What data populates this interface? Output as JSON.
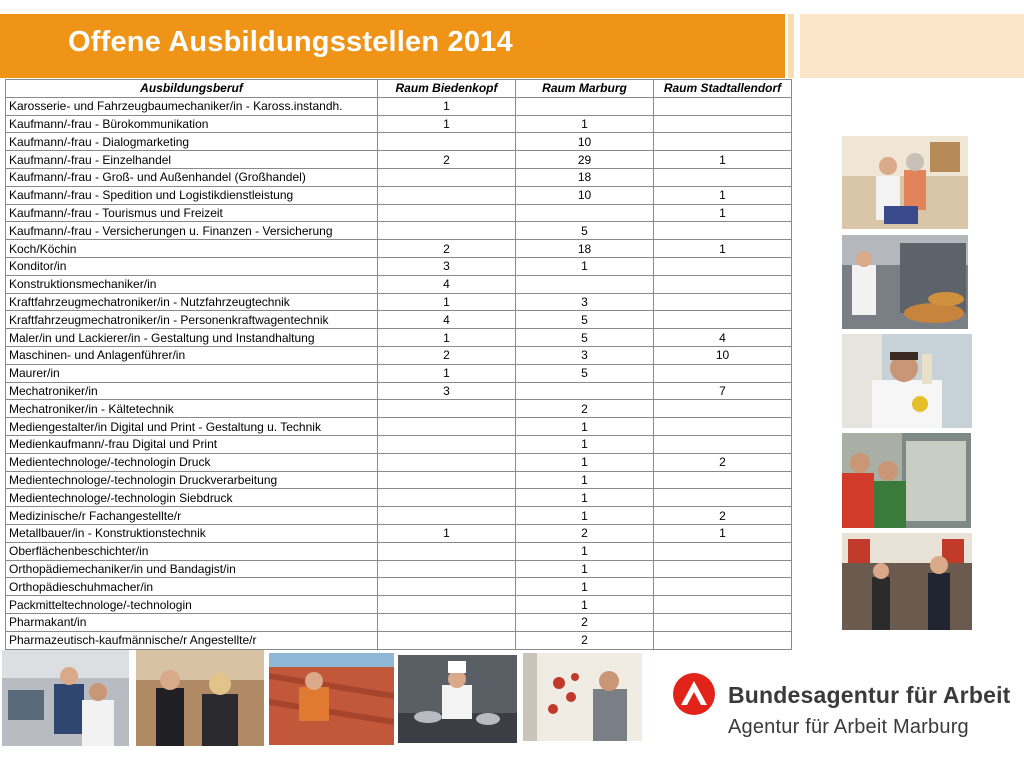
{
  "title": "Offene Ausbildungsstellen 2014",
  "colors": {
    "accent": "#ef9417",
    "logo_red": "#e2231a"
  },
  "table": {
    "headers": [
      "Ausbildungsberuf",
      "Raum Biedenkopf",
      "Raum Marburg",
      "Raum Stadtallendorf"
    ],
    "rows": [
      [
        "Karosserie- und Fahrzeugbaumechaniker/in - Kaross.instandh.",
        "1",
        "",
        ""
      ],
      [
        "Kaufmann/-frau - Bürokommunikation",
        "1",
        "1",
        ""
      ],
      [
        "Kaufmann/-frau - Dialogmarketing",
        "",
        "10",
        ""
      ],
      [
        "Kaufmann/-frau - Einzelhandel",
        "2",
        "29",
        "1"
      ],
      [
        "Kaufmann/-frau - Groß- und Außenhandel (Großhandel)",
        "",
        "18",
        ""
      ],
      [
        "Kaufmann/-frau - Spedition und Logistikdienstleistung",
        "",
        "10",
        "1"
      ],
      [
        "Kaufmann/-frau - Tourismus und Freizeit",
        "",
        "",
        "1"
      ],
      [
        "Kaufmann/-frau - Versicherungen u. Finanzen - Versicherung",
        "",
        "5",
        ""
      ],
      [
        "Koch/Köchin",
        "2",
        "18",
        "1"
      ],
      [
        "Konditor/in",
        "3",
        "1",
        ""
      ],
      [
        "Konstruktionsmechaniker/in",
        "4",
        "",
        ""
      ],
      [
        "Kraftfahrzeugmechatroniker/in - Nutzfahrzeugtechnik",
        "1",
        "3",
        ""
      ],
      [
        "Kraftfahrzeugmechatroniker/in - Personenkraftwagentechnik",
        "4",
        "5",
        ""
      ],
      [
        "Maler/in und Lackierer/in - Gestaltung und Instandhaltung",
        "1",
        "5",
        "4"
      ],
      [
        "Maschinen- und Anlagenführer/in",
        "2",
        "3",
        "10"
      ],
      [
        "Maurer/in",
        "1",
        "5",
        ""
      ],
      [
        "Mechatroniker/in",
        "3",
        "",
        "7"
      ],
      [
        "Mechatroniker/in - Kältetechnik",
        "",
        "2",
        ""
      ],
      [
        "Mediengestalter/in Digital und Print - Gestaltung u. Technik",
        "",
        "1",
        ""
      ],
      [
        "Medienkaufmann/-frau Digital und Print",
        "",
        "1",
        ""
      ],
      [
        "Medientechnologe/-technologin Druck",
        "",
        "1",
        "2"
      ],
      [
        "Medientechnologe/-technologin Druckverarbeitung",
        "",
        "1",
        ""
      ],
      [
        "Medientechnologe/-technologin Siebdruck",
        "",
        "1",
        ""
      ],
      [
        "Medizinische/r Fachangestellte/r",
        "",
        "1",
        "2"
      ],
      [
        "Metallbauer/in - Konstruktionstechnik",
        "1",
        "2",
        "1"
      ],
      [
        "Oberflächenbeschichter/in",
        "",
        "1",
        ""
      ],
      [
        "Orthopädiemechaniker/in und Bandagist/in",
        "",
        "1",
        ""
      ],
      [
        "Orthopädieschuhmacher/in",
        "",
        "1",
        ""
      ],
      [
        "Packmitteltechnologe/-technologin",
        "",
        "1",
        ""
      ],
      [
        "Pharmakant/in",
        "",
        "2",
        ""
      ],
      [
        "Pharmazeutisch-kaufmännische/r Angestellte/r",
        "",
        "2",
        ""
      ]
    ]
  },
  "logo": {
    "line1": "Bundesagentur für Arbeit",
    "line2": "Agentur für Arbeit Marburg"
  }
}
